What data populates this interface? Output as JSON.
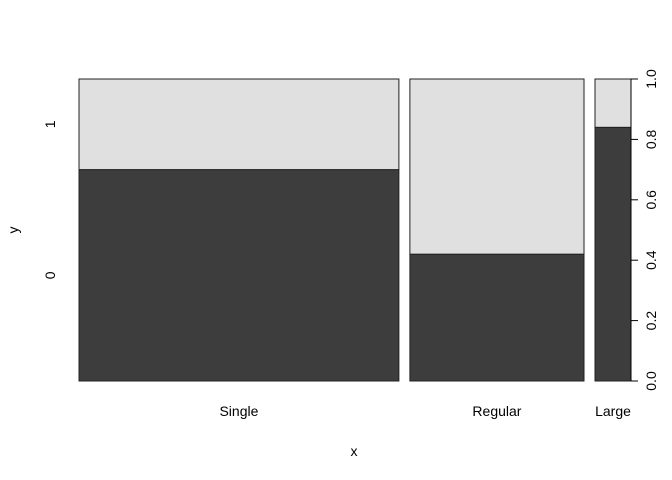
{
  "chart_data": {
    "type": "spineplot",
    "xlabel": "x",
    "ylabel": "y",
    "categories": [
      "Single",
      "Regular",
      "Large"
    ],
    "category_widths": [
      0.5688,
      0.3096,
      0.064
    ],
    "levels": [
      "0",
      "1"
    ],
    "series": [
      {
        "name": "0",
        "values": [
          0.7,
          0.42,
          0.84
        ],
        "color": "#3d3d3d"
      },
      {
        "name": "1",
        "values": [
          0.3,
          0.58,
          0.16
        ],
        "color": "#e0e0e0"
      }
    ],
    "ylim": [
      0,
      1
    ],
    "right_axis_ticks": [
      "0.0",
      "0.2",
      "0.4",
      "0.6",
      "0.8",
      "1.0"
    ],
    "grid": false,
    "legend": "none"
  }
}
